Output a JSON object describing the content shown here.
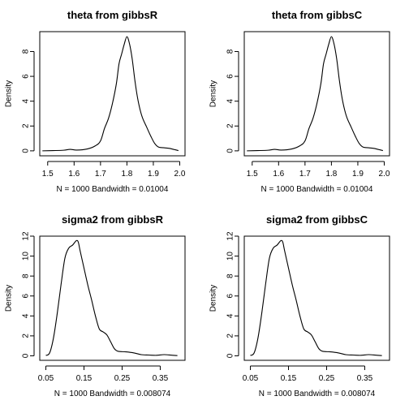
{
  "figure": {
    "layout": "2x2 grid"
  },
  "chart_data": [
    {
      "type": "line",
      "title": "theta from gibbsR",
      "xlabel": "N = 1000   Bandwidth = 0.01004",
      "ylabel": "Density",
      "xlim": [
        1.47,
        2.02
      ],
      "ylim": [
        -0.4,
        9.6
      ],
      "xticks": [
        1.5,
        1.6,
        1.7,
        1.8,
        1.9,
        2.0
      ],
      "xtick_labels": [
        "1.5",
        "1.6",
        "1.7",
        "1.8",
        "1.9",
        "2.0"
      ],
      "yticks": [
        0,
        2,
        4,
        6,
        8
      ],
      "ytick_labels": [
        "0",
        "2",
        "4",
        "6",
        "8"
      ],
      "series": [
        {
          "x": [
            1.48,
            1.52,
            1.56,
            1.585,
            1.61,
            1.65,
            1.68,
            1.7,
            1.715,
            1.73,
            1.745,
            1.76,
            1.77,
            1.78,
            1.79,
            1.8,
            1.81,
            1.82,
            1.83,
            1.84,
            1.85,
            1.86,
            1.875,
            1.89,
            1.905,
            1.92,
            1.94,
            1.96,
            1.98,
            1.995
          ],
          "y": [
            0.0,
            0.02,
            0.05,
            0.12,
            0.06,
            0.15,
            0.4,
            0.8,
            1.8,
            2.6,
            3.8,
            5.4,
            7.0,
            7.8,
            8.6,
            9.2,
            8.6,
            7.4,
            5.7,
            4.3,
            3.3,
            2.6,
            1.9,
            1.2,
            0.6,
            0.3,
            0.25,
            0.2,
            0.1,
            0.02
          ]
        }
      ]
    },
    {
      "type": "line",
      "title": "theta from gibbsC",
      "xlabel": "N = 1000   Bandwidth = 0.01004",
      "ylabel": "Density",
      "xlim": [
        1.47,
        2.02
      ],
      "ylim": [
        -0.4,
        9.6
      ],
      "xticks": [
        1.5,
        1.6,
        1.7,
        1.8,
        1.9,
        2.0
      ],
      "xtick_labels": [
        "1.5",
        "1.6",
        "1.7",
        "1.8",
        "1.9",
        "2.0"
      ],
      "yticks": [
        0,
        2,
        4,
        6,
        8
      ],
      "ytick_labels": [
        "0",
        "2",
        "4",
        "6",
        "8"
      ],
      "series": [
        {
          "x": [
            1.48,
            1.52,
            1.56,
            1.585,
            1.61,
            1.65,
            1.68,
            1.7,
            1.715,
            1.73,
            1.745,
            1.76,
            1.77,
            1.78,
            1.79,
            1.8,
            1.81,
            1.82,
            1.83,
            1.84,
            1.85,
            1.86,
            1.875,
            1.89,
            1.905,
            1.92,
            1.94,
            1.96,
            1.98,
            1.995
          ],
          "y": [
            0.0,
            0.02,
            0.05,
            0.12,
            0.06,
            0.15,
            0.4,
            0.8,
            1.8,
            2.6,
            3.8,
            5.4,
            7.0,
            7.8,
            8.6,
            9.2,
            8.6,
            7.4,
            5.7,
            4.3,
            3.3,
            2.6,
            1.9,
            1.2,
            0.6,
            0.3,
            0.25,
            0.2,
            0.1,
            0.02
          ]
        }
      ]
    },
    {
      "type": "line",
      "title": "sigma2 from gibbsR",
      "xlabel": "N = 1000   Bandwidth = 0.008074",
      "ylabel": "Density",
      "xlim": [
        0.034,
        0.415
      ],
      "ylim": [
        -0.45,
        12.0
      ],
      "xticks": [
        0.05,
        0.15,
        0.25,
        0.35
      ],
      "xtick_labels": [
        "0.05",
        "0.15",
        "0.25",
        "0.35"
      ],
      "yticks": [
        0,
        2,
        4,
        6,
        8,
        10,
        12
      ],
      "ytick_labels": [
        "0",
        "2",
        "4",
        "6",
        "8",
        "10",
        "12"
      ],
      "series": [
        {
          "x": [
            0.05,
            0.06,
            0.07,
            0.08,
            0.09,
            0.1,
            0.11,
            0.12,
            0.13,
            0.135,
            0.14,
            0.15,
            0.16,
            0.17,
            0.18,
            0.19,
            0.2,
            0.21,
            0.22,
            0.23,
            0.24,
            0.26,
            0.28,
            0.3,
            0.32,
            0.34,
            0.36,
            0.38,
            0.395
          ],
          "y": [
            0.03,
            0.3,
            1.8,
            4.3,
            7.2,
            9.8,
            10.8,
            11.1,
            11.55,
            11.4,
            10.5,
            8.8,
            7.1,
            5.6,
            4.0,
            2.7,
            2.4,
            2.1,
            1.4,
            0.7,
            0.45,
            0.4,
            0.3,
            0.12,
            0.08,
            0.05,
            0.12,
            0.06,
            0.02
          ]
        }
      ]
    },
    {
      "type": "line",
      "title": "sigma2 from gibbsC",
      "xlabel": "N = 1000   Bandwidth = 0.008074",
      "ylabel": "Density",
      "xlim": [
        0.034,
        0.415
      ],
      "ylim": [
        -0.45,
        12.0
      ],
      "xticks": [
        0.05,
        0.15,
        0.25,
        0.35
      ],
      "xtick_labels": [
        "0.05",
        "0.15",
        "0.25",
        "0.35"
      ],
      "yticks": [
        0,
        2,
        4,
        6,
        8,
        10,
        12
      ],
      "ytick_labels": [
        "0",
        "2",
        "4",
        "6",
        "8",
        "10",
        "12"
      ],
      "series": [
        {
          "x": [
            0.05,
            0.06,
            0.07,
            0.08,
            0.09,
            0.1,
            0.11,
            0.12,
            0.13,
            0.135,
            0.14,
            0.15,
            0.16,
            0.17,
            0.18,
            0.19,
            0.2,
            0.21,
            0.22,
            0.23,
            0.24,
            0.26,
            0.28,
            0.3,
            0.32,
            0.34,
            0.36,
            0.38,
            0.395
          ],
          "y": [
            0.03,
            0.3,
            1.8,
            4.3,
            7.2,
            9.8,
            10.8,
            11.1,
            11.55,
            11.4,
            10.5,
            8.8,
            7.1,
            5.6,
            4.0,
            2.7,
            2.4,
            2.1,
            1.4,
            0.7,
            0.45,
            0.4,
            0.3,
            0.12,
            0.08,
            0.05,
            0.12,
            0.06,
            0.02
          ]
        }
      ]
    }
  ]
}
